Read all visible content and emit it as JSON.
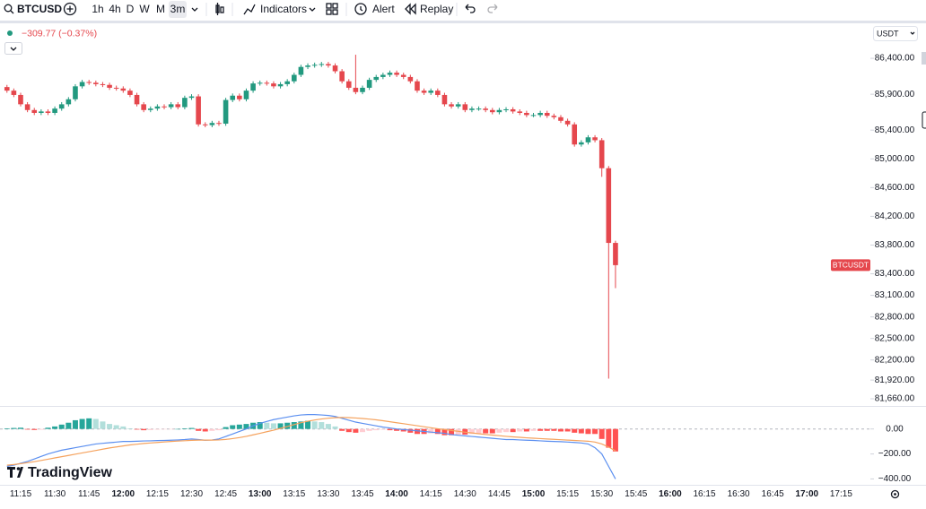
{
  "toolbar": {
    "symbol": "BTCUSD",
    "intervals": [
      "1h",
      "4h",
      "D",
      "W",
      "M",
      "3m"
    ],
    "active_interval_index": 5,
    "indicators": "Indicators",
    "alert": "Alert",
    "replay": "Replay"
  },
  "legend": {
    "change": "−309.77 (−0.37%)"
  },
  "currency": "USDT",
  "logo": "TradingView",
  "chart_data": [
    {
      "type": "candlestick",
      "symbol_tag": "BTCUSDT",
      "categories": [
        null,
        null,
        "11:15",
        null,
        null,
        null,
        null,
        "11:30",
        null,
        null,
        null,
        null,
        "11:45",
        null,
        null,
        null,
        null,
        "12:00",
        null,
        null,
        null,
        null,
        "12:15",
        null,
        null,
        null,
        null,
        "12:30",
        null,
        null,
        null,
        null,
        "12:45",
        null,
        null,
        null,
        null,
        "13:00",
        null,
        null,
        null,
        null,
        "13:15",
        null,
        null,
        null,
        null,
        "13:30",
        null,
        null,
        null,
        null,
        "13:45",
        null,
        null,
        null,
        null,
        "14:00",
        null,
        null,
        null,
        null,
        "14:15",
        null,
        null,
        null,
        null,
        "14:30",
        null,
        null,
        null,
        null,
        "14:45",
        null,
        null,
        null,
        null,
        "15:00",
        null,
        null,
        null,
        null,
        "15:15",
        null,
        null,
        null,
        null,
        "15:30",
        null,
        null
      ],
      "future_categories": [
        "15:45",
        "16:00",
        "16:15",
        "16:30",
        "16:45",
        "17:00",
        "17:15"
      ],
      "open": [
        86000,
        85950,
        85890,
        85760,
        85680,
        85640,
        85660,
        85640,
        85700,
        85760,
        85830,
        86010,
        86070,
        86060,
        86040,
        86030,
        85990,
        85980,
        85950,
        85890,
        85760,
        85680,
        85700,
        85730,
        85720,
        85760,
        85720,
        85850,
        85870,
        85480,
        85470,
        85500,
        85490,
        85820,
        85880,
        85830,
        85950,
        86050,
        86060,
        86050,
        86010,
        86040,
        86080,
        86170,
        86280,
        86300,
        86310,
        86320,
        86300,
        86220,
        86080,
        85990,
        85930,
        85990,
        86100,
        86140,
        86170,
        86200,
        86170,
        86140,
        86080,
        85950,
        85920,
        85950,
        85890,
        85760,
        85730,
        85760,
        85680,
        85700,
        85700,
        85680,
        85650,
        85680,
        85690,
        85660,
        85640,
        85610,
        85610,
        85640,
        85600,
        85580,
        85530,
        85480,
        85200,
        85230,
        85300,
        85260,
        84870,
        83830
      ],
      "high": [
        86030,
        85980,
        85920,
        85790,
        85710,
        85690,
        85690,
        85730,
        85790,
        85860,
        86040,
        86100,
        86100,
        86090,
        86070,
        86060,
        86020,
        86010,
        85980,
        85920,
        85790,
        85730,
        85760,
        85760,
        85790,
        85790,
        85880,
        85900,
        85900,
        85510,
        85530,
        85530,
        85850,
        85910,
        85910,
        85980,
        86080,
        86090,
        86090,
        86080,
        86070,
        86110,
        86200,
        86310,
        86330,
        86340,
        86350,
        86350,
        86330,
        86250,
        86110,
        86450,
        86020,
        86130,
        86170,
        86200,
        86230,
        86230,
        86200,
        86170,
        86110,
        85980,
        85980,
        85980,
        85920,
        85790,
        85790,
        85790,
        85730,
        85730,
        85730,
        85710,
        85710,
        85720,
        85720,
        85690,
        85670,
        85640,
        85670,
        85670,
        85630,
        85610,
        85560,
        85510,
        85260,
        85330,
        85330,
        85290,
        84900,
        83860
      ],
      "low": [
        85920,
        85860,
        85730,
        85650,
        85610,
        85610,
        85610,
        85610,
        85670,
        85730,
        85800,
        85980,
        86030,
        86010,
        86000,
        85960,
        85950,
        85920,
        85860,
        85730,
        85650,
        85650,
        85670,
        85690,
        85690,
        85690,
        85690,
        85820,
        85450,
        85440,
        85440,
        85460,
        85460,
        85790,
        85800,
        85800,
        85920,
        86020,
        86020,
        85980,
        85980,
        86010,
        86050,
        86140,
        86250,
        86270,
        86280,
        86270,
        86190,
        86050,
        85960,
        85900,
        85900,
        85960,
        86070,
        86110,
        86140,
        86140,
        86110,
        86050,
        85920,
        85890,
        85890,
        85860,
        85730,
        85700,
        85700,
        85650,
        85650,
        85670,
        85650,
        85620,
        85620,
        85650,
        85630,
        85610,
        85580,
        85580,
        85580,
        85570,
        85550,
        85500,
        85450,
        85170,
        85170,
        85200,
        85230,
        84750,
        81940,
        83200
      ],
      "close": [
        85950,
        85890,
        85760,
        85680,
        85640,
        85660,
        85640,
        85700,
        85760,
        85830,
        86010,
        86070,
        86060,
        86040,
        86030,
        85990,
        85980,
        85950,
        85890,
        85760,
        85680,
        85700,
        85730,
        85720,
        85760,
        85720,
        85850,
        85870,
        85480,
        85470,
        85500,
        85490,
        85820,
        85880,
        85830,
        85950,
        86050,
        86060,
        86050,
        86010,
        86040,
        86080,
        86170,
        86280,
        86300,
        86310,
        86320,
        86300,
        86220,
        86080,
        85990,
        85930,
        85990,
        86100,
        86140,
        86170,
        86200,
        86170,
        86140,
        86080,
        85950,
        85920,
        85950,
        85890,
        85760,
        85730,
        85760,
        85680,
        85700,
        85700,
        85680,
        85650,
        85680,
        85690,
        85660,
        85640,
        85610,
        85610,
        85640,
        85600,
        85580,
        85530,
        85480,
        85200,
        85230,
        85300,
        85260,
        84870,
        83830,
        83520
      ],
      "up_color": "#22997f",
      "down_color": "#e5474d",
      "tag_color": "#e5474d",
      "ylim": [
        81560,
        86900
      ],
      "yticks": [
        {
          "value": 86400,
          "label": "86,400.00"
        },
        {
          "value": 85900,
          "label": "85,900.00"
        },
        {
          "value": 85400,
          "label": "85,400.00"
        },
        {
          "value": 85000,
          "label": "85,000.00"
        },
        {
          "value": 84600,
          "label": "84,600.00"
        },
        {
          "value": 84200,
          "label": "84,200.00"
        },
        {
          "value": 83800,
          "label": "83,800.00"
        },
        {
          "value": 83400,
          "label": "83,400.00"
        },
        {
          "value": 83100,
          "label": "83,100.00"
        },
        {
          "value": 82800,
          "label": "82,800.00"
        },
        {
          "value": 82500,
          "label": "82,500.00"
        },
        {
          "value": 82200,
          "label": "82,200.00"
        },
        {
          "value": 81920,
          "label": "81,920.00"
        },
        {
          "value": 81660,
          "label": "81,660.00"
        }
      ],
      "grid": false
    },
    {
      "type": "macd",
      "histogram": [
        5,
        8,
        10,
        -5,
        -8,
        -6,
        10,
        20,
        35,
        50,
        70,
        80,
        85,
        80,
        60,
        40,
        30,
        20,
        5,
        -5,
        -10,
        -8,
        -5,
        -3,
        -2,
        0,
        5,
        8,
        -15,
        -20,
        -15,
        -10,
        15,
        30,
        35,
        40,
        50,
        55,
        50,
        45,
        45,
        50,
        55,
        60,
        65,
        60,
        55,
        40,
        20,
        -15,
        -25,
        -30,
        -25,
        -15,
        -10,
        -5,
        -10,
        -15,
        -20,
        -30,
        -40,
        -40,
        -35,
        -40,
        -50,
        -50,
        -45,
        -45,
        -40,
        -35,
        -35,
        -35,
        -30,
        -25,
        -25,
        -20,
        -20,
        -15,
        -15,
        -15,
        -15,
        -20,
        -20,
        -30,
        -35,
        -40,
        -40,
        -80,
        -150,
        -180
      ],
      "positive_color": "#26a69a",
      "positive_fading_color": "#b2dfdb",
      "negative_color": "#ff5252",
      "negative_fading_color": "#ffcdd2",
      "series": [
        {
          "color": "#5b8ff0",
          "values": [
            -300,
            -290,
            -275,
            -260,
            -240,
            -220,
            -200,
            -185,
            -170,
            -160,
            -150,
            -140,
            -130,
            -120,
            -115,
            -110,
            -105,
            -100,
            -100,
            -98,
            -96,
            -95,
            -93,
            -92,
            -90,
            -88,
            -85,
            -80,
            -85,
            -90,
            -88,
            -80,
            -60,
            -40,
            -20,
            0,
            25,
            45,
            60,
            75,
            85,
            95,
            105,
            112,
            115,
            115,
            112,
            108,
            100,
            85,
            70,
            55,
            45,
            35,
            25,
            15,
            8,
            0,
            -5,
            -10,
            -15,
            -20,
            -25,
            -30,
            -35,
            -45,
            -50,
            -55,
            -60,
            -65,
            -70,
            -75,
            -80,
            -85,
            -85,
            -88,
            -90,
            -92,
            -95,
            -98,
            -100,
            -102,
            -105,
            -108,
            -112,
            -120,
            -150,
            -200,
            -300,
            -400
          ]
        },
        {
          "color": "#f5a25d",
          "values": [
            -290,
            -285,
            -278,
            -270,
            -262,
            -252,
            -242,
            -232,
            -222,
            -212,
            -202,
            -192,
            -182,
            -172,
            -162,
            -152,
            -144,
            -136,
            -128,
            -122,
            -116,
            -112,
            -108,
            -104,
            -100,
            -97,
            -94,
            -91,
            -89,
            -89,
            -89,
            -88,
            -84,
            -77,
            -69,
            -59,
            -47,
            -35,
            -22,
            -10,
            5,
            20,
            35,
            50,
            62,
            72,
            80,
            86,
            90,
            92,
            91,
            88,
            84,
            79,
            73,
            66,
            58,
            50,
            42,
            34,
            26,
            18,
            10,
            2,
            -5,
            -12,
            -19,
            -26,
            -32,
            -38,
            -44,
            -49,
            -54,
            -59,
            -63,
            -67,
            -71,
            -74,
            -77,
            -80,
            -83,
            -86,
            -89,
            -92,
            -95,
            -98,
            -105,
            -120,
            -145,
            -175
          ]
        }
      ],
      "ylim": [
        -440,
        170
      ],
      "yticks": [
        {
          "value": 0,
          "label": "0.00"
        },
        {
          "value": -200,
          "label": "−200.00"
        },
        {
          "value": -400,
          "label": "−400.00"
        }
      ],
      "zero_line": true
    }
  ]
}
